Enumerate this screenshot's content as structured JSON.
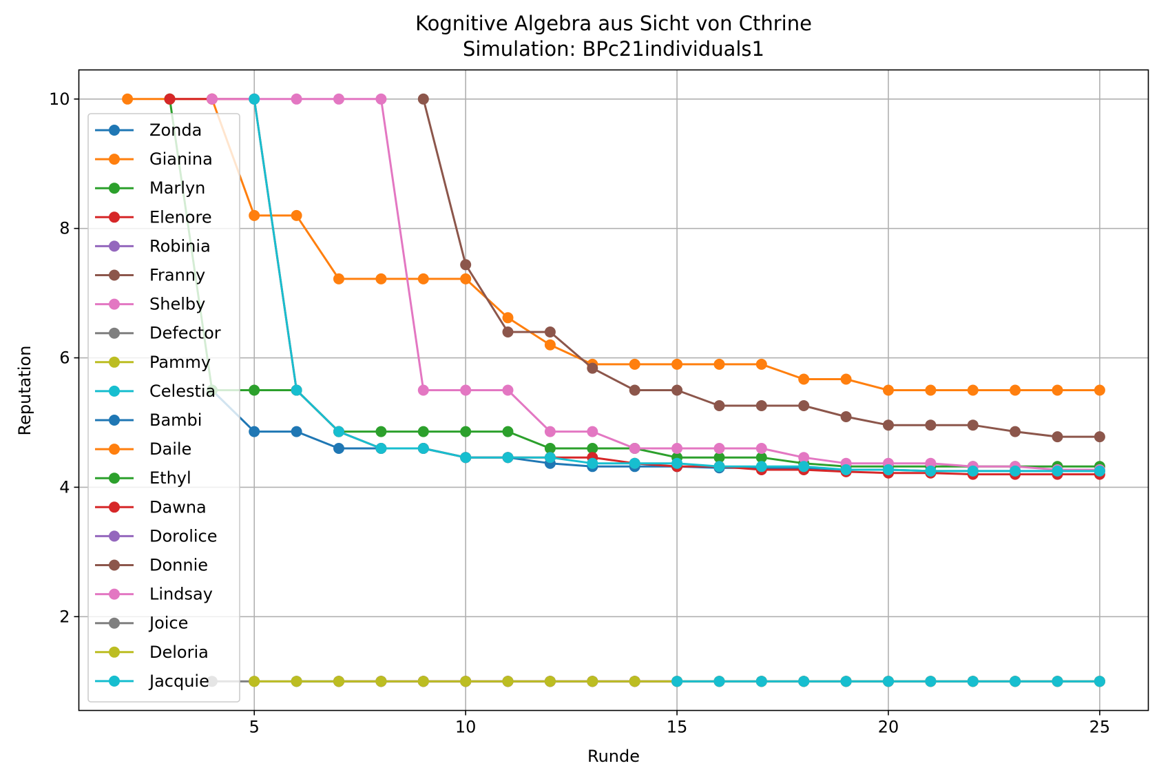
{
  "chart_data": {
    "type": "line",
    "title": "Kognitive Algebra aus Sicht von Cthrine",
    "subtitle": "Simulation: BPc21individuals1",
    "xlabel": "Runde",
    "ylabel": "Reputation",
    "xlim": [
      0.85,
      26.15
    ],
    "ylim": [
      0.55,
      10.45
    ],
    "xticks": [
      5,
      10,
      15,
      20,
      25
    ],
    "yticks": [
      2,
      4,
      6,
      8,
      10
    ],
    "grid": true,
    "legend_position": "upper-left",
    "series": [
      {
        "name": "Zonda",
        "color": "#1f77b4",
        "points": [
          [
            4,
            5.5
          ],
          [
            5,
            4.86
          ],
          [
            6,
            4.86
          ],
          [
            7,
            4.6
          ],
          [
            8,
            4.6
          ],
          [
            9,
            4.6
          ],
          [
            10,
            4.46
          ],
          [
            11,
            4.46
          ],
          [
            12,
            4.37
          ],
          [
            13,
            4.32
          ],
          [
            14,
            4.32
          ],
          [
            15,
            4.32
          ],
          [
            16,
            4.3
          ],
          [
            17,
            4.3
          ],
          [
            18,
            4.3
          ],
          [
            19,
            4.27
          ],
          [
            20,
            4.27
          ],
          [
            21,
            4.25
          ],
          [
            22,
            4.25
          ],
          [
            23,
            4.25
          ],
          [
            24,
            4.25
          ],
          [
            25,
            4.25
          ]
        ]
      },
      {
        "name": "Gianina",
        "color": "#ff7f0e",
        "points": [
          [
            2,
            10
          ],
          [
            3,
            10
          ],
          [
            4,
            10
          ],
          [
            5,
            8.2
          ],
          [
            6,
            8.2
          ],
          [
            7,
            7.22
          ],
          [
            8,
            7.22
          ],
          [
            9,
            7.22
          ],
          [
            10,
            7.22
          ],
          [
            11,
            6.62
          ],
          [
            12,
            6.2
          ],
          [
            13,
            5.9
          ],
          [
            14,
            5.9
          ],
          [
            15,
            5.9
          ],
          [
            16,
            5.9
          ],
          [
            17,
            5.9
          ],
          [
            18,
            5.67
          ],
          [
            19,
            5.67
          ],
          [
            20,
            5.5
          ],
          [
            21,
            5.5
          ],
          [
            22,
            5.5
          ],
          [
            23,
            5.5
          ],
          [
            24,
            5.5
          ],
          [
            25,
            5.5
          ]
        ]
      },
      {
        "name": "Marlyn",
        "color": "#2ca02c",
        "points": [
          [
            3,
            10
          ],
          [
            4,
            5.5
          ],
          [
            5,
            5.5
          ],
          [
            6,
            5.5
          ],
          [
            7,
            4.86
          ],
          [
            8,
            4.86
          ],
          [
            9,
            4.86
          ],
          [
            10,
            4.86
          ],
          [
            11,
            4.86
          ],
          [
            12,
            4.6
          ],
          [
            13,
            4.6
          ],
          [
            14,
            4.6
          ],
          [
            15,
            4.46
          ],
          [
            16,
            4.46
          ],
          [
            17,
            4.46
          ],
          [
            18,
            4.37
          ],
          [
            19,
            4.32
          ],
          [
            20,
            4.32
          ],
          [
            21,
            4.32
          ],
          [
            22,
            4.32
          ],
          [
            23,
            4.32
          ],
          [
            24,
            4.32
          ],
          [
            25,
            4.32
          ]
        ]
      },
      {
        "name": "Elenore",
        "color": "#d62728",
        "points": [
          [
            3,
            10
          ],
          [
            4,
            10
          ],
          [
            5,
            10
          ],
          [
            6,
            5.5
          ],
          [
            7,
            4.86
          ],
          [
            8,
            4.6
          ],
          [
            9,
            4.6
          ],
          [
            10,
            4.46
          ],
          [
            11,
            4.46
          ],
          [
            12,
            4.46
          ],
          [
            13,
            4.46
          ],
          [
            14,
            4.37
          ],
          [
            15,
            4.32
          ],
          [
            16,
            4.32
          ],
          [
            17,
            4.27
          ],
          [
            18,
            4.27
          ],
          [
            19,
            4.24
          ],
          [
            20,
            4.22
          ],
          [
            21,
            4.22
          ],
          [
            22,
            4.2
          ],
          [
            23,
            4.2
          ],
          [
            24,
            4.2
          ],
          [
            25,
            4.2
          ]
        ]
      },
      {
        "name": "Robinia",
        "color": "#9467bd",
        "points": []
      },
      {
        "name": "Franny",
        "color": "#8c564b",
        "points": [
          [
            9,
            10
          ],
          [
            10,
            7.44
          ],
          [
            11,
            6.4
          ],
          [
            12,
            6.4
          ],
          [
            13,
            5.84
          ],
          [
            14,
            5.5
          ],
          [
            15,
            5.5
          ],
          [
            16,
            5.26
          ],
          [
            17,
            5.26
          ],
          [
            18,
            5.26
          ],
          [
            19,
            5.09
          ],
          [
            20,
            4.96
          ],
          [
            21,
            4.96
          ],
          [
            22,
            4.96
          ],
          [
            23,
            4.86
          ],
          [
            24,
            4.78
          ],
          [
            25,
            4.78
          ]
        ]
      },
      {
        "name": "Shelby",
        "color": "#e377c2",
        "points": [
          [
            4,
            10
          ],
          [
            5,
            10
          ],
          [
            6,
            10
          ],
          [
            7,
            10
          ],
          [
            8,
            10
          ],
          [
            9,
            5.5
          ],
          [
            10,
            5.5
          ],
          [
            11,
            5.5
          ],
          [
            12,
            4.86
          ],
          [
            13,
            4.86
          ],
          [
            14,
            4.6
          ],
          [
            15,
            4.6
          ],
          [
            16,
            4.6
          ],
          [
            17,
            4.6
          ],
          [
            18,
            4.46
          ],
          [
            19,
            4.37
          ],
          [
            20,
            4.37
          ],
          [
            21,
            4.37
          ],
          [
            22,
            4.32
          ],
          [
            23,
            4.32
          ],
          [
            24,
            4.27
          ],
          [
            25,
            4.27
          ]
        ]
      },
      {
        "name": "Defector",
        "color": "#7f7f7f",
        "points": []
      },
      {
        "name": "Pammy",
        "color": "#bcbd22",
        "points": []
      },
      {
        "name": "Celestia",
        "color": "#17becf",
        "points": [
          [
            5,
            10
          ],
          [
            6,
            5.5
          ],
          [
            7,
            4.86
          ],
          [
            8,
            4.6
          ],
          [
            9,
            4.6
          ],
          [
            10,
            4.46
          ],
          [
            11,
            4.46
          ],
          [
            12,
            4.46
          ],
          [
            13,
            4.37
          ],
          [
            14,
            4.37
          ],
          [
            15,
            4.37
          ],
          [
            16,
            4.32
          ],
          [
            17,
            4.32
          ],
          [
            18,
            4.32
          ],
          [
            19,
            4.27
          ],
          [
            20,
            4.27
          ],
          [
            21,
            4.25
          ],
          [
            22,
            4.25
          ],
          [
            23,
            4.25
          ],
          [
            24,
            4.25
          ],
          [
            25,
            4.25
          ]
        ]
      },
      {
        "name": "Bambi",
        "color": "#1f77b4",
        "points": [
          [
            6,
            1
          ],
          [
            7,
            1
          ],
          [
            8,
            1
          ],
          [
            9,
            1
          ],
          [
            10,
            1
          ],
          [
            11,
            1
          ],
          [
            12,
            1
          ],
          [
            13,
            1
          ],
          [
            14,
            1
          ],
          [
            15,
            1
          ],
          [
            16,
            1
          ],
          [
            17,
            1
          ],
          [
            18,
            1
          ],
          [
            19,
            1
          ],
          [
            20,
            1
          ],
          [
            21,
            1
          ],
          [
            22,
            1
          ],
          [
            23,
            1
          ],
          [
            24,
            1
          ],
          [
            25,
            1
          ]
        ]
      },
      {
        "name": "Daile",
        "color": "#ff7f0e",
        "points": []
      },
      {
        "name": "Ethyl",
        "color": "#2ca02c",
        "points": []
      },
      {
        "name": "Dawna",
        "color": "#d62728",
        "points": [
          [
            7,
            1
          ],
          [
            8,
            1
          ],
          [
            9,
            1
          ],
          [
            10,
            1
          ],
          [
            11,
            1
          ],
          [
            12,
            1
          ],
          [
            13,
            1
          ],
          [
            14,
            1
          ],
          [
            15,
            1
          ],
          [
            16,
            1
          ],
          [
            17,
            1
          ],
          [
            18,
            1
          ],
          [
            19,
            1
          ],
          [
            20,
            1
          ],
          [
            21,
            1
          ],
          [
            22,
            1
          ],
          [
            23,
            1
          ],
          [
            24,
            1
          ],
          [
            25,
            1
          ]
        ]
      },
      {
        "name": "Dorolice",
        "color": "#9467bd",
        "points": [
          [
            8,
            1
          ],
          [
            9,
            1
          ],
          [
            10,
            1
          ],
          [
            11,
            1
          ],
          [
            12,
            1
          ],
          [
            13,
            1
          ],
          [
            14,
            1
          ],
          [
            15,
            1
          ],
          [
            16,
            1
          ],
          [
            17,
            1
          ],
          [
            18,
            1
          ],
          [
            19,
            1
          ],
          [
            20,
            1
          ],
          [
            21,
            1
          ],
          [
            22,
            1
          ],
          [
            23,
            1
          ],
          [
            24,
            1
          ],
          [
            25,
            1
          ]
        ]
      },
      {
        "name": "Donnie",
        "color": "#8c564b",
        "points": []
      },
      {
        "name": "Lindsay",
        "color": "#e377c2",
        "points": [
          [
            8,
            1
          ],
          [
            9,
            1
          ],
          [
            10,
            1
          ],
          [
            11,
            1
          ],
          [
            12,
            1
          ],
          [
            13,
            1
          ],
          [
            14,
            1
          ],
          [
            15,
            1
          ],
          [
            16,
            1
          ],
          [
            17,
            1
          ],
          [
            18,
            1
          ],
          [
            19,
            1
          ],
          [
            20,
            1
          ],
          [
            21,
            1
          ],
          [
            22,
            1
          ],
          [
            23,
            1
          ],
          [
            24,
            1
          ],
          [
            25,
            1
          ]
        ]
      },
      {
        "name": "Joice",
        "color": "#7f7f7f",
        "points": [
          [
            4,
            1
          ],
          [
            5,
            1
          ],
          [
            6,
            1
          ],
          [
            7,
            1
          ],
          [
            8,
            1
          ],
          [
            9,
            1
          ],
          [
            10,
            1
          ],
          [
            11,
            1
          ],
          [
            12,
            1
          ],
          [
            13,
            1
          ],
          [
            14,
            1
          ],
          [
            15,
            1
          ],
          [
            16,
            1
          ],
          [
            17,
            1
          ],
          [
            18,
            1
          ],
          [
            19,
            1
          ],
          [
            20,
            1
          ],
          [
            21,
            1
          ],
          [
            22,
            1
          ],
          [
            23,
            1
          ],
          [
            24,
            1
          ],
          [
            25,
            1
          ]
        ]
      },
      {
        "name": "Deloria",
        "color": "#bcbd22",
        "points": [
          [
            5,
            1
          ],
          [
            6,
            1
          ],
          [
            7,
            1
          ],
          [
            8,
            1
          ],
          [
            9,
            1
          ],
          [
            10,
            1
          ],
          [
            11,
            1
          ],
          [
            12,
            1
          ],
          [
            13,
            1
          ],
          [
            14,
            1
          ],
          [
            15,
            1
          ],
          [
            16,
            1
          ],
          [
            17,
            1
          ],
          [
            18,
            1
          ],
          [
            19,
            1
          ],
          [
            20,
            1
          ],
          [
            21,
            1
          ],
          [
            22,
            1
          ],
          [
            23,
            1
          ],
          [
            24,
            1
          ],
          [
            25,
            1
          ]
        ]
      },
      {
        "name": "Jacquie",
        "color": "#17becf",
        "points": [
          [
            15,
            1
          ],
          [
            16,
            1
          ],
          [
            17,
            1
          ],
          [
            18,
            1
          ],
          [
            19,
            1
          ],
          [
            20,
            1
          ],
          [
            21,
            1
          ],
          [
            22,
            1
          ],
          [
            23,
            1
          ],
          [
            24,
            1
          ],
          [
            25,
            1
          ]
        ]
      }
    ]
  }
}
